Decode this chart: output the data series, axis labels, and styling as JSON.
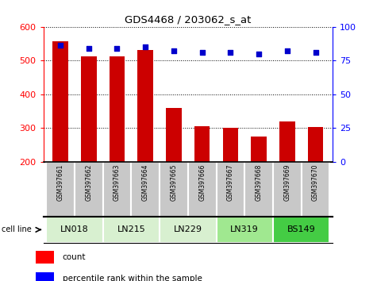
{
  "title": "GDS4468 / 203062_s_at",
  "samples": [
    "GSM397661",
    "GSM397662",
    "GSM397663",
    "GSM397664",
    "GSM397665",
    "GSM397666",
    "GSM397667",
    "GSM397668",
    "GSM397669",
    "GSM397670"
  ],
  "counts": [
    557,
    512,
    511,
    530,
    358,
    304,
    300,
    274,
    320,
    302
  ],
  "percentile_ranks": [
    86,
    84,
    84,
    85,
    82,
    81,
    81,
    80,
    82,
    81
  ],
  "bar_color": "#cc0000",
  "dot_color": "#0000cc",
  "ylim_left": [
    200,
    600
  ],
  "ylim_right": [
    0,
    100
  ],
  "yticks_left": [
    200,
    300,
    400,
    500,
    600
  ],
  "yticks_right": [
    0,
    25,
    50,
    75,
    100
  ],
  "sample_bg_color": "#c8c8c8",
  "cell_line_data": [
    {
      "name": "LN018",
      "start": 0,
      "end": 2,
      "color": "#d8f0d0"
    },
    {
      "name": "LN215",
      "start": 2,
      "end": 4,
      "color": "#d8f0d0"
    },
    {
      "name": "LN229",
      "start": 4,
      "end": 6,
      "color": "#d8f0d0"
    },
    {
      "name": "LN319",
      "start": 6,
      "end": 8,
      "color": "#a0e890"
    },
    {
      "name": "BS149",
      "start": 8,
      "end": 10,
      "color": "#44cc44"
    }
  ],
  "legend_items": [
    {
      "color": "#cc0000",
      "label": "count"
    },
    {
      "color": "#0000cc",
      "label": "percentile rank within the sample"
    }
  ]
}
